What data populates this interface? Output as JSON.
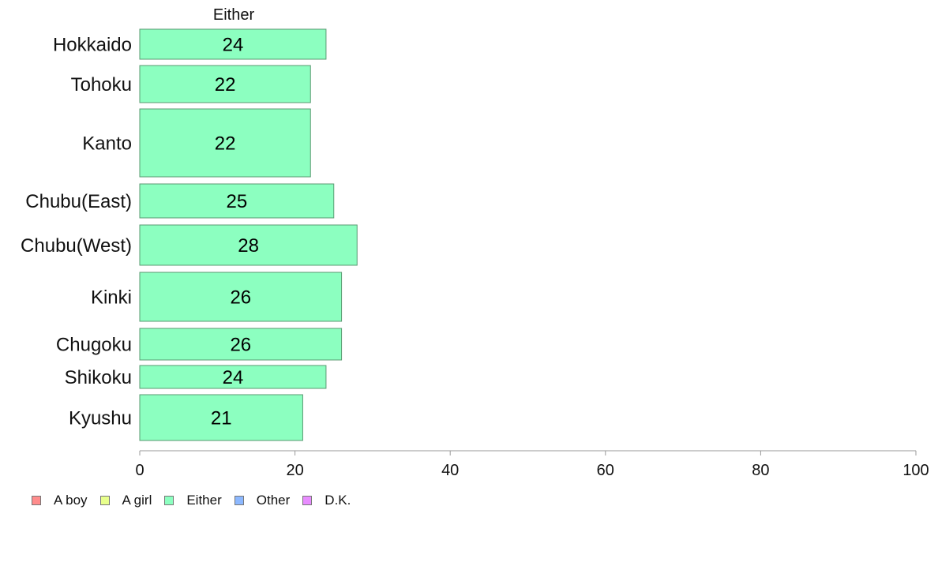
{
  "chart_data": {
    "type": "bar",
    "orientation": "horizontal",
    "series_title": "Either",
    "categories": [
      "Hokkaido",
      "Tohoku",
      "Kanto",
      "Chubu(East)",
      "Chubu(West)",
      "Kinki",
      "Chugoku",
      "Shikoku",
      "Kyushu"
    ],
    "values": [
      24,
      22,
      22,
      25,
      28,
      26,
      26,
      24,
      21
    ],
    "xlim": [
      0,
      100
    ],
    "xticks": [
      0,
      20,
      40,
      60,
      80,
      100
    ],
    "bar_color": "#8cffc0",
    "bar_edge": "#5a9a72",
    "legend": [
      {
        "label": "A boy",
        "color": "#ff8c8c"
      },
      {
        "label": "A girl",
        "color": "#e8ff8c"
      },
      {
        "label": "Either",
        "color": "#8cffc0"
      },
      {
        "label": "Other",
        "color": "#8cb8ff"
      },
      {
        "label": "D.K.",
        "color": "#e88cff"
      }
    ]
  }
}
